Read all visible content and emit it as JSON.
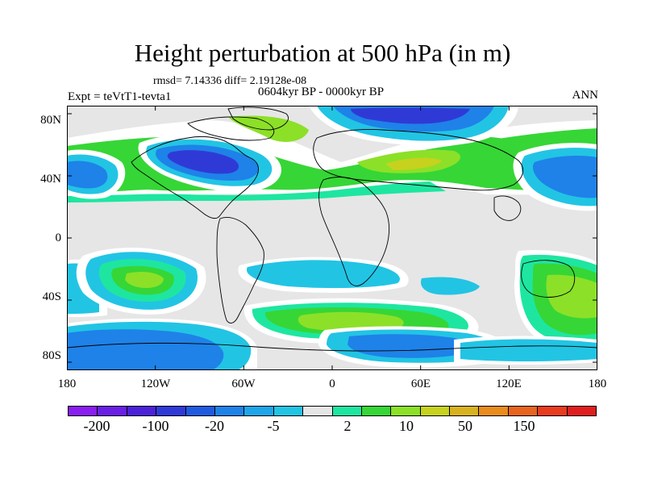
{
  "title": "Height perturbation at 500 hPa (in m)",
  "stats": "rmsd= 7.14336 diff= 2.19128e-08",
  "period": "0604kyr BP - 0000kyr BP",
  "expt": "Expt = teVtT1-tevta1",
  "season": "ANN",
  "lat_labels": [
    "80N",
    "40N",
    "0",
    "40S",
    "80S"
  ],
  "lon_labels": [
    "180",
    "120W",
    "60W",
    "0",
    "60E",
    "120E",
    "180"
  ],
  "colorbar": {
    "colors": [
      "#8a1ef0",
      "#6a1ee6",
      "#4b21d9",
      "#2f3ad6",
      "#1f5be0",
      "#1e82e8",
      "#1da6ea",
      "#22c4e4",
      "#e6e6e6",
      "#1ee6a0",
      "#36d636",
      "#8ce028",
      "#c6d21e",
      "#d8b21e",
      "#e88c1e",
      "#e8641e",
      "#e83c1e",
      "#e01e1e"
    ],
    "labels": [
      "-200",
      "-100",
      "-20",
      "-5",
      "2",
      "10",
      "50",
      "150"
    ]
  },
  "palette": {
    "neutral": "#e6e6e6",
    "blue_dark": "#2f3ad6",
    "blue_mid": "#1e82e8",
    "blue_light": "#22c4e4",
    "green_teal": "#1ee6a0",
    "green": "#36d636",
    "yellow_green": "#8ce028",
    "olive": "#c6d21e",
    "white_gap": "#ffffff"
  }
}
